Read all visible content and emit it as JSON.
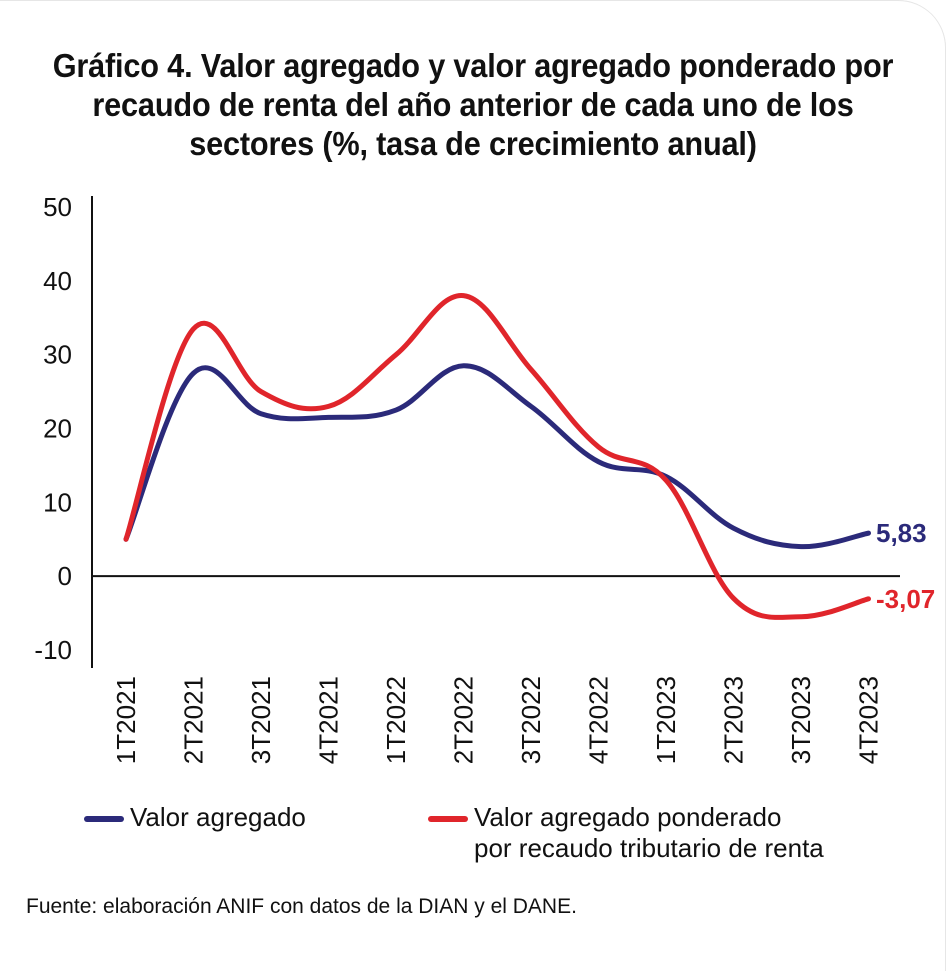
{
  "chart_data": {
    "type": "line",
    "title": "Gráfico 4. Valor agregado y valor agregado ponderado por recaudo de renta del año anterior de cada uno de los sectores (%, tasa de crecimiento anual)",
    "categories": [
      "1T2021",
      "2T2021",
      "3T2021",
      "4T2021",
      "1T2022",
      "2T2022",
      "3T2022",
      "4T2022",
      "1T2023",
      "2T2023",
      "3T2023",
      "4T2023"
    ],
    "ylim": [
      -10,
      50
    ],
    "yticks": [
      "50",
      "40",
      "30",
      "20",
      "10",
      "0",
      "-10"
    ],
    "series": [
      {
        "name": "Valor agregado",
        "color": "#2b2a7a",
        "values": [
          5,
          27.5,
          22,
          21.5,
          22.5,
          28.5,
          23,
          15.5,
          13.5,
          6.5,
          4,
          5.83
        ],
        "end_label": "5,83"
      },
      {
        "name": "Valor agregado ponderado por recaudo tributario de renta",
        "color": "#e0252b",
        "values": [
          5,
          33.5,
          25,
          23,
          30,
          38,
          28,
          17.5,
          13,
          -3,
          -5.5,
          -3.07
        ],
        "end_label": "-3,07"
      }
    ],
    "legend": [
      {
        "label": "Valor agregado",
        "color": "#2b2a7a"
      },
      {
        "label": "Valor agregado ponderado\npor recaudo tributario de renta",
        "color": "#e0252b"
      }
    ],
    "source": "Fuente: elaboración ANIF con datos de la DIAN y el DANE."
  }
}
